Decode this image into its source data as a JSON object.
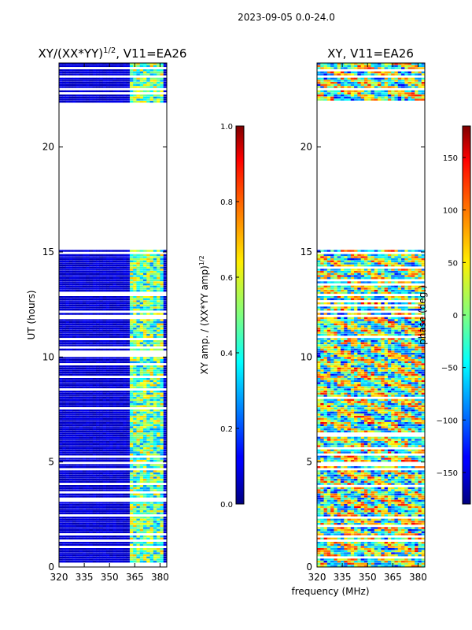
{
  "figure": {
    "suptitle": "2023-09-05 0.0-24.0",
    "xlabel": "frequency (MHz)"
  },
  "chart_data": [
    {
      "type": "heatmap",
      "title_main": "XY/(XX*YY)",
      "title_sup": "1/2",
      "title_suffix": ", V11=EA26",
      "ylabel": "UT (hours)",
      "xlim": [
        320,
        384
      ],
      "ylim": [
        0,
        24
      ],
      "xticks": [
        "320",
        "335",
        "350",
        "365",
        "380"
      ],
      "xtick_values": [
        320,
        335,
        350,
        365,
        380
      ],
      "yticks": [
        "0",
        "5",
        "10",
        "15",
        "20"
      ],
      "ytick_values": [
        0,
        5,
        10,
        15,
        20
      ],
      "data_gaps_ut": [
        [
          15.1,
          22.1
        ]
      ],
      "colorbar": {
        "label_main": "XY amp. / (XX*YY amp)",
        "label_sup": "1/2",
        "range": [
          0.0,
          1.0
        ],
        "ticks": [
          "0.0",
          "0.2",
          "0.4",
          "0.6",
          "0.8",
          "1.0"
        ],
        "tick_values": [
          0.0,
          0.2,
          0.4,
          0.6,
          0.8,
          1.0
        ],
        "colormap": "jet"
      }
    },
    {
      "type": "heatmap",
      "title": "XY, V11=EA26",
      "xlim": [
        320,
        384
      ],
      "ylim": [
        0,
        24
      ],
      "xticks": [
        "320",
        "335",
        "350",
        "365",
        "380"
      ],
      "xtick_values": [
        320,
        335,
        350,
        365,
        380
      ],
      "yticks": [
        "0",
        "5",
        "10",
        "15",
        "20"
      ],
      "ytick_values": [
        0,
        5,
        10,
        15,
        20
      ],
      "data_gaps_ut": [
        [
          15.1,
          22.1
        ]
      ],
      "colorbar": {
        "label": "phase (deg.)",
        "range": [
          -180,
          180
        ],
        "ticks": [
          "−150",
          "−100",
          "−50",
          "0",
          "50",
          "100",
          "150"
        ],
        "tick_values": [
          -150,
          -100,
          -50,
          0,
          50,
          100,
          150
        ],
        "colormap": "jet"
      }
    }
  ]
}
